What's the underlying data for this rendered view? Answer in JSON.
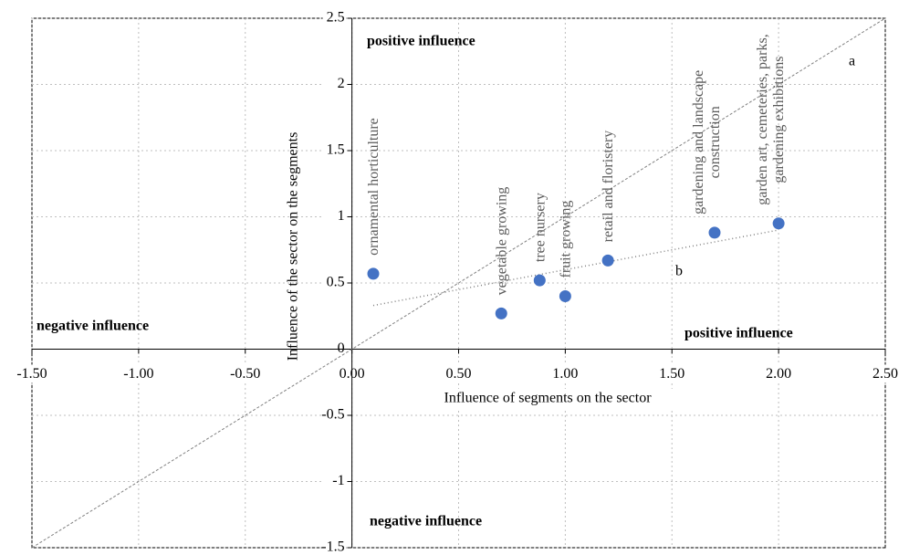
{
  "chart_data": {
    "type": "scatter",
    "x_label": "Influence of segments on the sector",
    "y_label": "Influence of the sector on the segments",
    "x": [
      0.1,
      0.7,
      0.88,
      1.0,
      1.2,
      1.7,
      2.0
    ],
    "values": [
      0.57,
      0.27,
      0.52,
      0.4,
      0.67,
      0.88,
      0.95
    ],
    "point_labels": [
      [
        "ornamental horticulture"
      ],
      [
        "vegetable growing"
      ],
      [
        "tree nursery"
      ],
      [
        "fruit growing"
      ],
      [
        "retail and floristery"
      ],
      [
        "gardening and landscape",
        "construction"
      ],
      [
        "garden art, cemeteries, parks,",
        "gardening exhibitions"
      ]
    ],
    "color": "#4472c4",
    "xlim": [
      -1.5,
      2.5
    ],
    "ylim": [
      -1.5,
      2.5
    ],
    "xticks": [
      {
        "value": -1.5,
        "label": "-1.50"
      },
      {
        "value": -1,
        "label": "-1.00"
      },
      {
        "value": -0.5,
        "label": "-0.50"
      },
      {
        "value": 0,
        "label": "0.00"
      },
      {
        "value": 0.5,
        "label": "0.50"
      },
      {
        "value": 1,
        "label": "1.00"
      },
      {
        "value": 1.5,
        "label": "1.50"
      },
      {
        "value": 2,
        "label": "2.00"
      },
      {
        "value": 2.5,
        "label": "2.50"
      }
    ],
    "yticks": [
      -1.5,
      -1,
      -0.5,
      0,
      0.5,
      1,
      1.5,
      2,
      2.5
    ],
    "grid": true,
    "reference_lines": [
      {
        "name": "a",
        "x": [
          -1.5,
          2.5
        ],
        "y": [
          -1.5,
          2.5
        ]
      },
      {
        "name": "b",
        "x": [
          0.1,
          2.0
        ],
        "y": [
          0.33,
          0.9
        ]
      }
    ],
    "annotations": [
      "positive influence",
      "negative influence",
      "positive influence",
      "negative influence"
    ]
  }
}
